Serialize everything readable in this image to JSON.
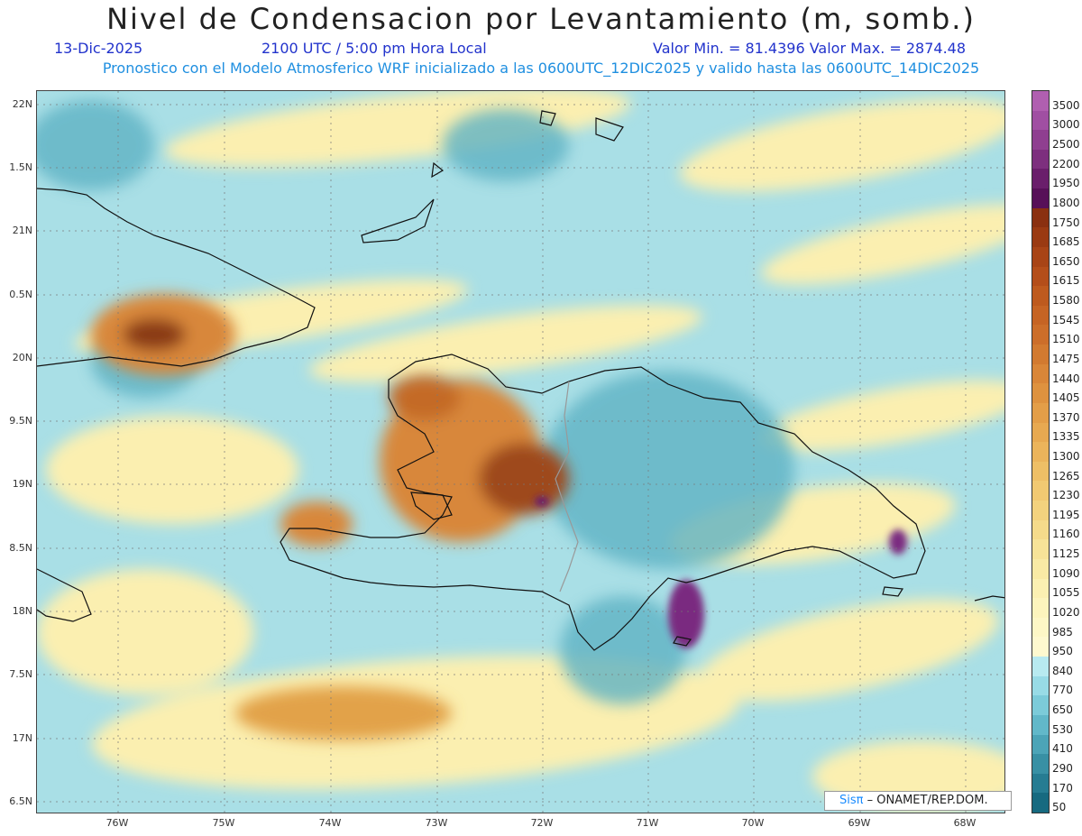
{
  "header": {
    "title": "Nivel de Condensacion por Levantamiento (m, somb.)",
    "date": "13-Dic-2025",
    "time": "2100 UTC / 5:00 pm Hora Local",
    "minmax": "Valor Min. = 81.4396  Valor Max. = 2874.48",
    "forecast": "Pronostico con el Modelo Atmosferico WRF inicializado a las 0600UTC_12DIC2025 y valido hasta las  0600UTC_14DIC2025"
  },
  "axes": {
    "lat_labels": [
      "22N",
      "1.5N",
      "21N",
      "0.5N",
      "20N",
      "9.5N",
      "19N",
      "8.5N",
      "18N",
      "7.5N",
      "17N",
      "6.5N"
    ],
    "lon_labels": [
      "76W",
      "75W",
      "74W",
      "73W",
      "72W",
      "71W",
      "70W",
      "69W",
      "68W"
    ]
  },
  "colorbar": {
    "levels": [
      "3500",
      "3000",
      "2500",
      "2200",
      "1950",
      "1800",
      "1750",
      "1685",
      "1650",
      "1615",
      "1580",
      "1545",
      "1510",
      "1475",
      "1440",
      "1405",
      "1370",
      "1335",
      "1300",
      "1265",
      "1230",
      "1195",
      "1160",
      "1125",
      "1090",
      "1055",
      "1020",
      "985",
      "950",
      "840",
      "770",
      "650",
      "530",
      "410",
      "290",
      "170",
      "50"
    ],
    "colors": [
      "#b05fb0",
      "#a04fa2",
      "#8f3f90",
      "#7d2f7e",
      "#6a1e6b",
      "#571058",
      "#8a3010",
      "#9a3a12",
      "#a84416",
      "#b44e1a",
      "#be5a1e",
      "#c66424",
      "#cc6e2a",
      "#d27a30",
      "#d98638",
      "#de923f",
      "#e39e48",
      "#e7a951",
      "#ebb45b",
      "#eebf66",
      "#f1c972",
      "#f3d27e",
      "#f5db8b",
      "#f7e398",
      "#f9eaa5",
      "#fbf0b2",
      "#fcf4bd",
      "#fdf7c6",
      "#fef9cf",
      "#b8eaf0",
      "#98dbe6",
      "#7ccbd9",
      "#62b8c9",
      "#4ca4b7",
      "#3890a4",
      "#267c92",
      "#176a80"
    ]
  },
  "credit": {
    "sis": "Sisπ",
    "org": "– ONAMET/REP.DOM."
  }
}
